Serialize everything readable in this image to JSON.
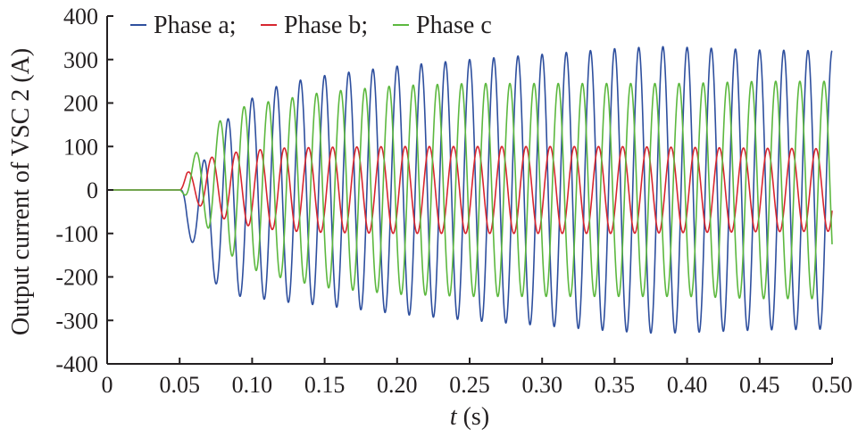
{
  "chart_data": {
    "type": "line",
    "xlabel_var": "t",
    "xlabel_unit": " (s)",
    "ylabel": "Output current of VSC 2 (A)",
    "xlim": [
      0,
      0.5
    ],
    "ylim": [
      -400,
      400
    ],
    "x_ticks": [
      "0",
      "0.05",
      "0.10",
      "0.15",
      "0.20",
      "0.25",
      "0.30",
      "0.35",
      "0.40",
      "0.45",
      "0.50"
    ],
    "x_tick_values": [
      0,
      0.05,
      0.1,
      0.15,
      0.2,
      0.25,
      0.3,
      0.35,
      0.4,
      0.45,
      0.5
    ],
    "y_ticks": [
      "400",
      "300",
      "200",
      "100",
      "0",
      "-100",
      "-200",
      "-300",
      "-400"
    ],
    "y_tick_values": [
      400,
      300,
      200,
      100,
      0,
      -100,
      -200,
      -300,
      -400
    ],
    "grid": false,
    "legend_position": "top",
    "series": [
      {
        "name": "Phase a",
        "legend_label": "Phase a;",
        "color": "#2e4f9e",
        "x": [
          0,
          0.05,
          0.055,
          0.06,
          0.07,
          0.08,
          0.09,
          0.1,
          0.12,
          0.15,
          0.2,
          0.25,
          0.3,
          0.35,
          0.38,
          0.4,
          0.45,
          0.5
        ],
        "amplitude_A": [
          0,
          0,
          55,
          80,
          140,
          195,
          215,
          230,
          250,
          265,
          285,
          300,
          312,
          325,
          330,
          328,
          322,
          320
        ]
      },
      {
        "name": "Phase b",
        "legend_label": "Phase b;",
        "color": "#d7262f",
        "x": [
          0,
          0.05,
          0.055,
          0.06,
          0.07,
          0.08,
          0.09,
          0.1,
          0.12,
          0.15,
          0.2,
          0.25,
          0.3,
          0.35,
          0.4,
          0.45,
          0.5
        ],
        "amplitude_A": [
          0,
          0,
          28,
          40,
          62,
          74,
          82,
          88,
          95,
          98,
          100,
          100,
          100,
          100,
          98,
          96,
          95
        ]
      },
      {
        "name": "Phase c",
        "legend_label": "Phase c",
        "color": "#5cb83f",
        "x": [
          0,
          0.05,
          0.055,
          0.06,
          0.07,
          0.08,
          0.09,
          0.1,
          0.12,
          0.15,
          0.2,
          0.25,
          0.3,
          0.35,
          0.4,
          0.45,
          0.5
        ],
        "amplitude_A": [
          0,
          0,
          30,
          60,
          110,
          150,
          175,
          190,
          205,
          225,
          240,
          245,
          245,
          245,
          245,
          250,
          250
        ]
      }
    ],
    "frequency_hz": 60,
    "phase_offsets_deg": {
      "Phase a": 90,
      "Phase b": -30,
      "Phase c": -150
    },
    "onset_time_s": 0.05
  }
}
